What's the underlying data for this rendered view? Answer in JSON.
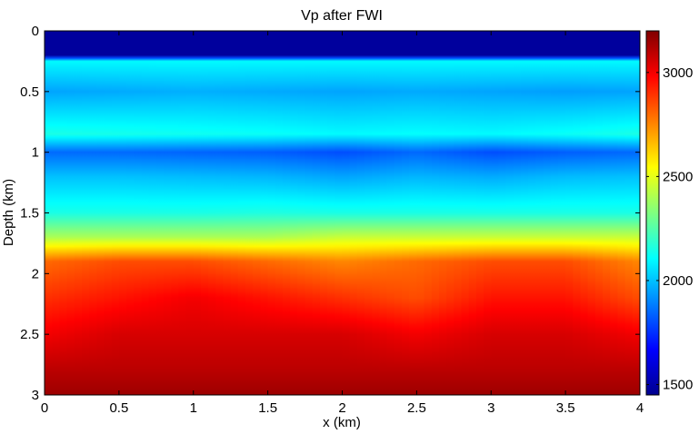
{
  "chart_data": {
    "type": "heatmap",
    "title": "Vp after FWI",
    "xlabel": "x (km)",
    "ylabel": "Depth (km)",
    "xlim": [
      0,
      4
    ],
    "ylim": [
      0,
      3
    ],
    "y_reversed": true,
    "x_ticks": [
      "0",
      "0.5",
      "1",
      "1.5",
      "2",
      "2.5",
      "3",
      "3.5",
      "4"
    ],
    "y_ticks": [
      "0",
      "0.5",
      "1",
      "1.5",
      "2",
      "2.5",
      "3"
    ],
    "colorbar": {
      "colormap": "jet",
      "range": [
        1450,
        3200
      ],
      "ticks": [
        "1500",
        "2000",
        "2500",
        "3000"
      ]
    },
    "x": [
      0,
      0.5,
      1,
      1.5,
      2,
      2.5,
      3,
      3.5,
      4
    ],
    "depth": [
      0,
      0.2,
      0.25,
      0.5,
      0.85,
      1.0,
      1.2,
      1.5,
      1.7,
      1.9,
      2.2,
      2.5,
      2.8,
      3.0
    ],
    "values": [
      [
        1500,
        1500,
        1500,
        1500,
        1500,
        1500,
        1500,
        1500,
        1500
      ],
      [
        1500,
        1500,
        1500,
        1500,
        1500,
        1500,
        1500,
        1500,
        1500
      ],
      [
        2100,
        2100,
        2100,
        2100,
        2100,
        2100,
        2100,
        2100,
        2100
      ],
      [
        1950,
        1960,
        1970,
        1960,
        1950,
        1960,
        1950,
        1940,
        1950
      ],
      [
        2150,
        2140,
        2130,
        2120,
        2100,
        2110,
        2100,
        2120,
        2150
      ],
      [
        1850,
        1850,
        1840,
        1830,
        1800,
        1850,
        1800,
        1830,
        1850
      ],
      [
        2000,
        2000,
        1990,
        1980,
        1950,
        1980,
        1960,
        1990,
        2000
      ],
      [
        2150,
        2150,
        2150,
        2160,
        2150,
        2150,
        2150,
        2150,
        2150
      ],
      [
        2400,
        2400,
        2400,
        2400,
        2450,
        2450,
        2450,
        2450,
        2450
      ],
      [
        2800,
        2850,
        2850,
        2800,
        2750,
        2800,
        2850,
        2850,
        2750
      ],
      [
        2900,
        2950,
        3000,
        2950,
        2900,
        2850,
        2950,
        2950,
        2850
      ],
      [
        3000,
        3050,
        3050,
        3050,
        3050,
        3000,
        3050,
        3050,
        3000
      ],
      [
        3100,
        3100,
        3100,
        3100,
        3100,
        3100,
        3100,
        3100,
        3100
      ],
      [
        3150,
        3150,
        3150,
        3150,
        3150,
        3150,
        3150,
        3150,
        3150
      ]
    ]
  }
}
